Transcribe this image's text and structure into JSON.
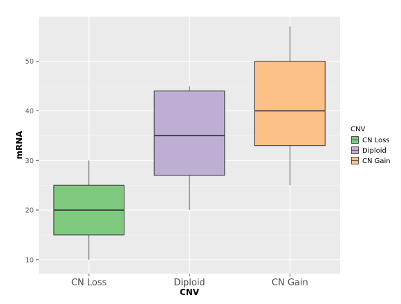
{
  "chart_data": {
    "type": "boxplot",
    "xlabel": "CNV",
    "ylabel": "mRNA",
    "ylim": [
      7.2,
      59
    ],
    "yticks": [
      10,
      20,
      30,
      40,
      50
    ],
    "categories": [
      "CN Loss",
      "Diploid",
      "CN Gain"
    ],
    "boxes": [
      {
        "category": "CN Loss",
        "min": 10,
        "q1": 15,
        "median": 20,
        "q3": 25,
        "max": 30,
        "color": "#7fc97f"
      },
      {
        "category": "Diploid",
        "min": 20,
        "q1": 27,
        "median": 35,
        "q3": 44,
        "max": 45,
        "color": "#beaed4"
      },
      {
        "category": "CN Gain",
        "min": 25,
        "q1": 33,
        "median": 40,
        "q3": 50,
        "max": 57,
        "color": "#fdc086"
      }
    ],
    "legend": {
      "title": "CNV",
      "placement": "right",
      "entries": [
        "CN Loss",
        "Diploid",
        "CN Gain"
      ]
    },
    "grid": true,
    "panel_color": "#ebebeb"
  }
}
